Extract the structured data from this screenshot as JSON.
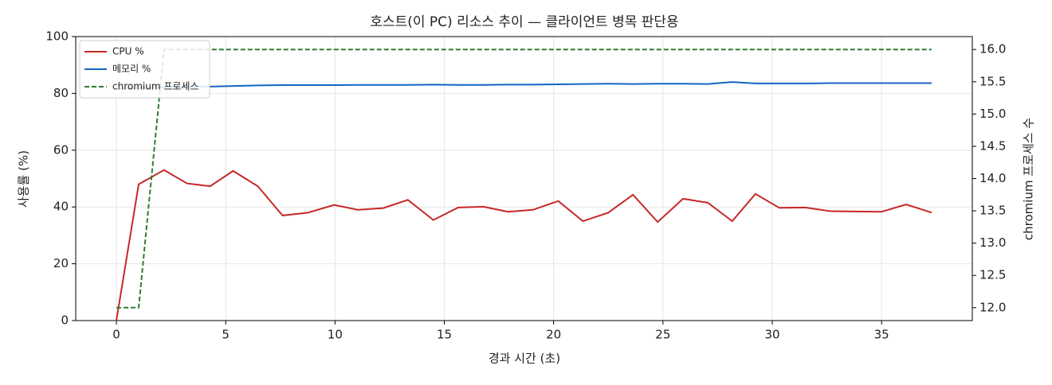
{
  "chart_data": {
    "type": "line",
    "title": "호스트(이 PC) 리소스 추이 — 클라이언트 병목 판단용",
    "x_label": "경과 시간 (초)",
    "y_label": "사용률 (%)",
    "y2_label": "chromium 프로세스 수",
    "x": [
      0,
      1.02,
      2.18,
      3.23,
      4.29,
      5.34,
      6.47,
      7.6,
      8.76,
      9.96,
      11.05,
      12.21,
      13.33,
      14.5,
      15.63,
      16.79,
      17.92,
      19.05,
      20.21,
      21.34,
      22.5,
      23.63,
      24.76,
      25.92,
      27.05,
      28.17,
      29.23,
      30.32,
      31.52,
      32.68,
      33.84,
      35.0,
      36.12,
      37.29
    ],
    "series": [
      {
        "name": "CPU %",
        "color": "#c62828",
        "linestyle": "solid",
        "values": [
          0,
          48,
          53,
          48.3,
          47.3,
          52.7,
          47.3,
          37,
          38,
          40.7,
          39,
          39.6,
          42.5,
          35.4,
          39.8,
          40.1,
          38.3,
          39,
          42.1,
          35,
          38,
          44.3,
          34.7,
          42.9,
          41.5,
          35,
          44.6,
          39.7,
          39.8,
          38.5,
          38.4,
          38.3,
          40.9,
          38
        ]
      },
      {
        "name": "메모리 %",
        "color": "#1565c0",
        "linestyle": "solid",
        "values": [
          81.6,
          81.9,
          82.1,
          82.3,
          82.4,
          82.6,
          82.8,
          82.9,
          82.9,
          82.9,
          83.0,
          83.0,
          83.0,
          83.1,
          83.0,
          83.0,
          83.1,
          83.1,
          83.2,
          83.3,
          83.4,
          83.3,
          83.4,
          83.4,
          83.3,
          84.0,
          83.5,
          83.5,
          83.5,
          83.6,
          83.6,
          83.6,
          83.6,
          83.6
        ]
      },
      {
        "name": "chromium 프로세스",
        "color": "#2e7d32",
        "linestyle": "dashed",
        "axis": "y2",
        "values": [
          12,
          12,
          16,
          16,
          16,
          16,
          16,
          16,
          16,
          16,
          16,
          16,
          16,
          16,
          16,
          16,
          16,
          16,
          16,
          16,
          16,
          16,
          16,
          16,
          16,
          16,
          16,
          16,
          16,
          16,
          16,
          16,
          16,
          16
        ]
      }
    ],
    "xlim": [
      -1.86,
      39.15
    ],
    "xticks": [
      0,
      5,
      10,
      15,
      20,
      25,
      30,
      35
    ],
    "ylim": [
      0,
      100
    ],
    "yticks": [
      0,
      20,
      40,
      60,
      80,
      100
    ],
    "y2lim": [
      11.8,
      16.2
    ],
    "y2ticks": [
      {
        "value": 12,
        "label": "12.0"
      },
      {
        "value": 12.5,
        "label": "12.5"
      },
      {
        "value": 13,
        "label": "13.0"
      },
      {
        "value": 13.5,
        "label": "13.5"
      },
      {
        "value": 14,
        "label": "14.0"
      },
      {
        "value": 14.5,
        "label": "14.5"
      },
      {
        "value": 15,
        "label": "15.0"
      },
      {
        "value": 15.5,
        "label": "15.5"
      },
      {
        "value": 16,
        "label": "16.0"
      }
    ],
    "grid": true,
    "legend": "upper left"
  }
}
